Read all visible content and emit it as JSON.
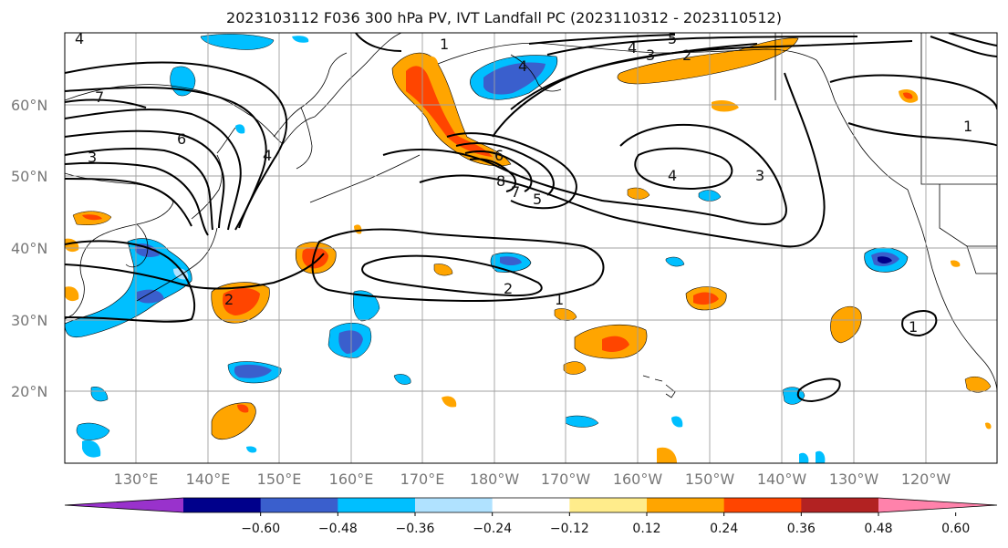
{
  "title": "2023103112 F036 300 hPa PV, IVT Landfall PC (2023110312 - 2023110512)",
  "map": {
    "lat_labels": [
      "60°N",
      "50°N",
      "40°N",
      "30°N",
      "20°N"
    ],
    "lon_labels": [
      "130°E",
      "140°E",
      "150°E",
      "160°E",
      "170°E",
      "180°W",
      "170°W",
      "160°W",
      "150°W",
      "140°W",
      "130°W",
      "120°W"
    ],
    "contour_labels": [
      "4",
      "7",
      "3",
      "6",
      "1",
      "4",
      "4",
      "6",
      "5",
      "2",
      "4",
      "8",
      "7",
      "5",
      "4",
      "3",
      "3",
      "2",
      "2",
      "1",
      "1",
      "1"
    ],
    "colors": {
      "land_outline": "#000000",
      "grid": "#a0a0a0",
      "contour": "#000000"
    }
  },
  "colorbar": {
    "ticks": [
      "−0.60",
      "−0.48",
      "−0.36",
      "−0.24",
      "−0.12",
      "0.12",
      "0.24",
      "0.36",
      "0.48",
      "0.60"
    ],
    "colors": [
      "#9932cc",
      "#00008b",
      "#3a5fcd",
      "#00bfff",
      "#b0e2ff",
      "#ffffff",
      "#ffec8b",
      "#ffa500",
      "#ff4500",
      "#b22222",
      "#ff82ab"
    ]
  }
}
